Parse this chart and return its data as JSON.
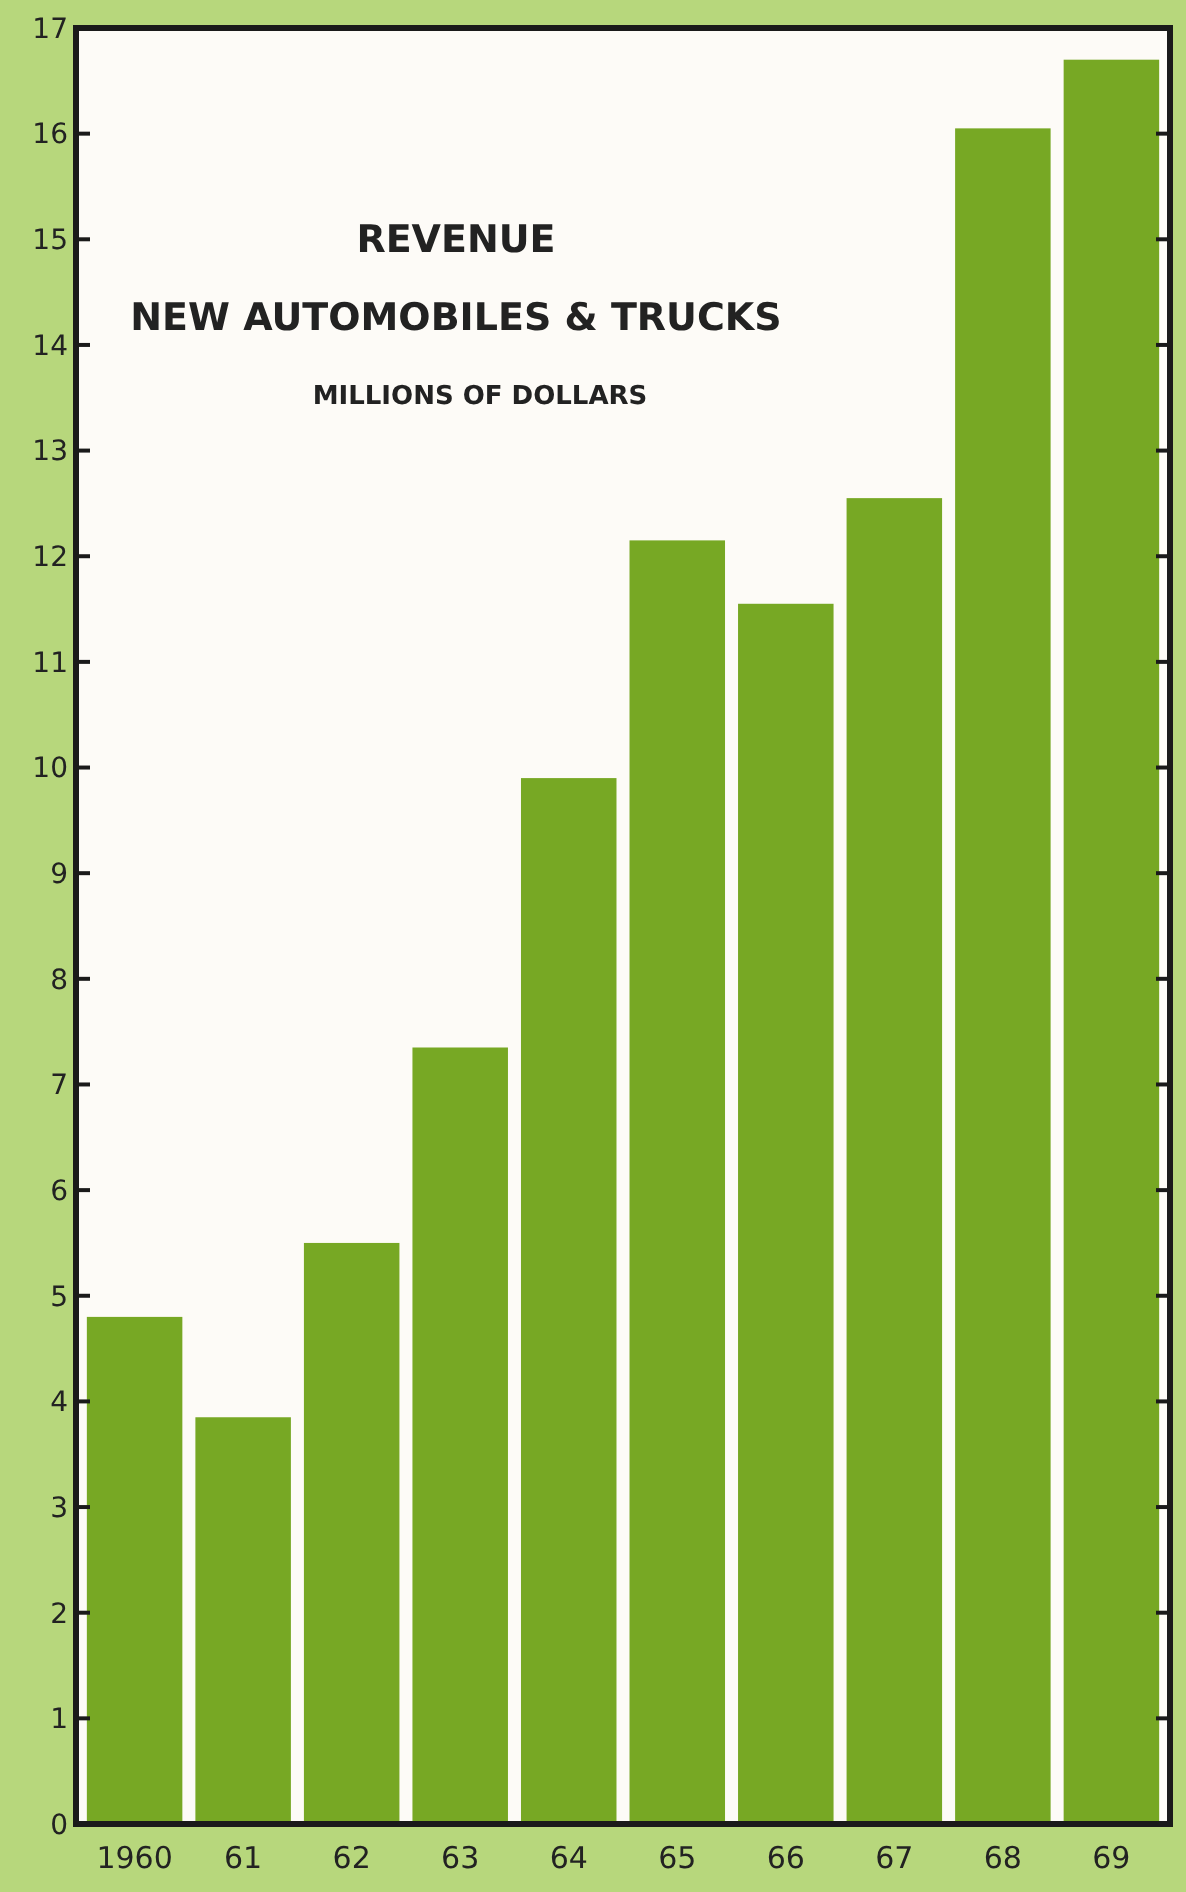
{
  "chart_data": {
    "type": "bar",
    "title": "REVENUE",
    "subtitle": "NEW AUTOMOBILES & TRUCKS",
    "ylabel": "MILLIONS OF DOLLARS",
    "categories": [
      "1960",
      "61",
      "62",
      "63",
      "64",
      "65",
      "66",
      "67",
      "68",
      "69"
    ],
    "values": [
      4.8,
      3.85,
      5.5,
      7.35,
      9.9,
      12.15,
      11.55,
      12.55,
      16.05,
      16.7
    ],
    "color": "#77a824",
    "ylim": [
      0,
      17
    ],
    "yticks": [
      0,
      1,
      2,
      3,
      4,
      5,
      6,
      7,
      8,
      9,
      10,
      11,
      12,
      13,
      14,
      15,
      16,
      17
    ],
    "grid": false
  }
}
